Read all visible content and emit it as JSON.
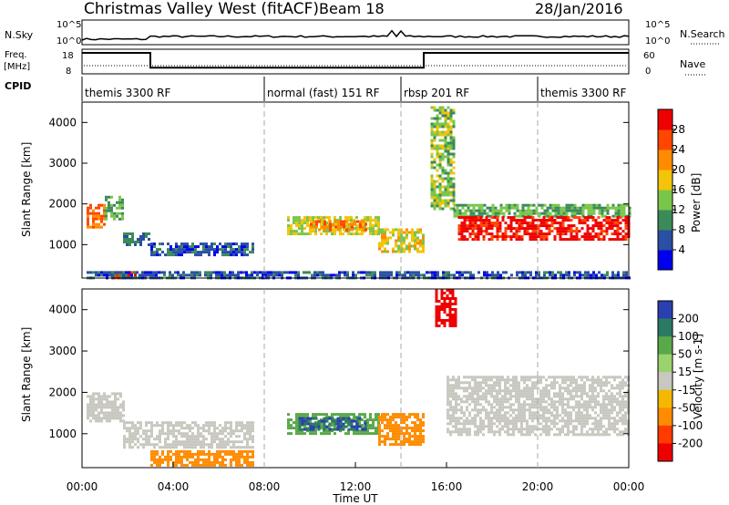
{
  "header": {
    "title": "Christmas Valley West (fitACF)",
    "beam": "Beam 18",
    "date": "28/Jan/2016"
  },
  "nsky_panel": {
    "left_label": "N.Sky",
    "right_label": "N.Search",
    "left_ticks": [
      "10^5",
      "10^0"
    ],
    "right_ticks": [
      "10^5",
      "10^0"
    ]
  },
  "freq_panel": {
    "left_label_1": "Freq.",
    "left_label_2": "[MHz]",
    "right_label": "Nave",
    "left_ticks": [
      "18",
      "8"
    ],
    "right_ticks": [
      "60",
      "0"
    ],
    "freq_steps": [
      {
        "from": "00:00",
        "to": "03:00",
        "mhz": 16.5
      },
      {
        "from": "03:00",
        "to": "15:00",
        "mhz": 10.5
      },
      {
        "from": "15:00",
        "to": "24:00",
        "mhz": 16.5
      }
    ]
  },
  "cpid": {
    "label": "CPID",
    "segments": [
      {
        "start": "00:00",
        "name": "themis 3300 RF"
      },
      {
        "start": "08:00",
        "name": "normal (fast) 151 RF"
      },
      {
        "start": "14:00",
        "name": "rbsp 201 RF"
      },
      {
        "start": "20:00",
        "name": "themis 3300 RF"
      }
    ]
  },
  "colors": {
    "power_scale": [
      "#0000ee",
      "#2a4fa3",
      "#3c8a5a",
      "#7ac64a",
      "#f2c40a",
      "#ff8c00",
      "#ff4500",
      "#ee0000"
    ],
    "velocity_scale": [
      "#2a3fb0",
      "#2c7a64",
      "#5aa84a",
      "#9cd26e",
      "#c8c8c0",
      "#f5b800",
      "#ff8c00",
      "#ff3b00",
      "#ee0000"
    ]
  },
  "chart_data": [
    {
      "type": "heatmap",
      "name": "power",
      "xlabel": "",
      "ylabel": "Slant Range [km]",
      "xlim": [
        "00:00",
        "24:00"
      ],
      "ylim": [
        180,
        4500
      ],
      "y_ticks": [
        1000,
        2000,
        3000,
        4000
      ],
      "colorbar_label": "Power [dB]",
      "colorbar_ticks": [
        4,
        8,
        12,
        16,
        20,
        24,
        28
      ],
      "colorbar_range": [
        0,
        32
      ],
      "regions": [
        {
          "t0": 0.2,
          "t1": 1.0,
          "r0": 1400,
          "r1": 2000,
          "value": 24
        },
        {
          "t0": 1.0,
          "t1": 1.8,
          "r0": 1600,
          "r1": 2200,
          "value": 12
        },
        {
          "t0": 1.8,
          "t1": 3.0,
          "r0": 1000,
          "r1": 1300,
          "value": 8
        },
        {
          "t0": 3.0,
          "t1": 7.5,
          "r0": 750,
          "r1": 1050,
          "value": 6
        },
        {
          "t0": 9.0,
          "t1": 13.0,
          "r0": 1250,
          "r1": 1700,
          "value": 16
        },
        {
          "t0": 10.0,
          "t1": 12.5,
          "r0": 1350,
          "r1": 1600,
          "value": 22
        },
        {
          "t0": 13.0,
          "t1": 15.0,
          "r0": 800,
          "r1": 1400,
          "value": 18
        },
        {
          "t0": 15.3,
          "t1": 16.3,
          "r0": 1900,
          "r1": 4400,
          "value": 14
        },
        {
          "t0": 16.3,
          "t1": 24.0,
          "r0": 1700,
          "r1": 2000,
          "value": 12
        },
        {
          "t0": 16.5,
          "t1": 24.0,
          "r0": 1100,
          "r1": 1700,
          "value": 30
        },
        {
          "t0": 1.2,
          "t1": 2.3,
          "r0": 180,
          "r1": 350,
          "value": 30
        },
        {
          "t0": 0.2,
          "t1": 24.0,
          "r0": 180,
          "r1": 350,
          "value": 6
        }
      ]
    },
    {
      "type": "heatmap",
      "name": "velocity",
      "xlabel": "Time UT",
      "ylabel": "Slant Range [km]",
      "xlim": [
        "00:00",
        "24:00"
      ],
      "ylim": [
        180,
        4500
      ],
      "x_ticks": [
        "00:00",
        "04:00",
        "08:00",
        "12:00",
        "16:00",
        "20:00",
        "00:00"
      ],
      "y_ticks": [
        1000,
        2000,
        3000,
        4000
      ],
      "colorbar_label": "Velocity [m s-1]",
      "colorbar_ticks": [
        200,
        100,
        50,
        15,
        -15,
        -50,
        -100,
        -200
      ],
      "regions": [
        {
          "t0": 0.2,
          "t1": 1.8,
          "r0": 1300,
          "r1": 2000,
          "value": 0
        },
        {
          "t0": 1.8,
          "t1": 7.5,
          "r0": 700,
          "r1": 1300,
          "value": 0
        },
        {
          "t0": 3.0,
          "t1": 7.5,
          "r0": 250,
          "r1": 600,
          "value": -40
        },
        {
          "t0": 9.0,
          "t1": 13.0,
          "r0": 1000,
          "r1": 1500,
          "value": 40
        },
        {
          "t0": 9.5,
          "t1": 12.5,
          "r0": 1100,
          "r1": 1400,
          "value": 150
        },
        {
          "t0": 13.0,
          "t1": 15.0,
          "r0": 750,
          "r1": 1500,
          "value": -40
        },
        {
          "t0": 16.0,
          "t1": 24.0,
          "r0": 1000,
          "r1": 2400,
          "value": 0
        },
        {
          "t0": 15.5,
          "t1": 16.4,
          "r0": 3600,
          "r1": 4500,
          "value": -200
        }
      ]
    }
  ]
}
